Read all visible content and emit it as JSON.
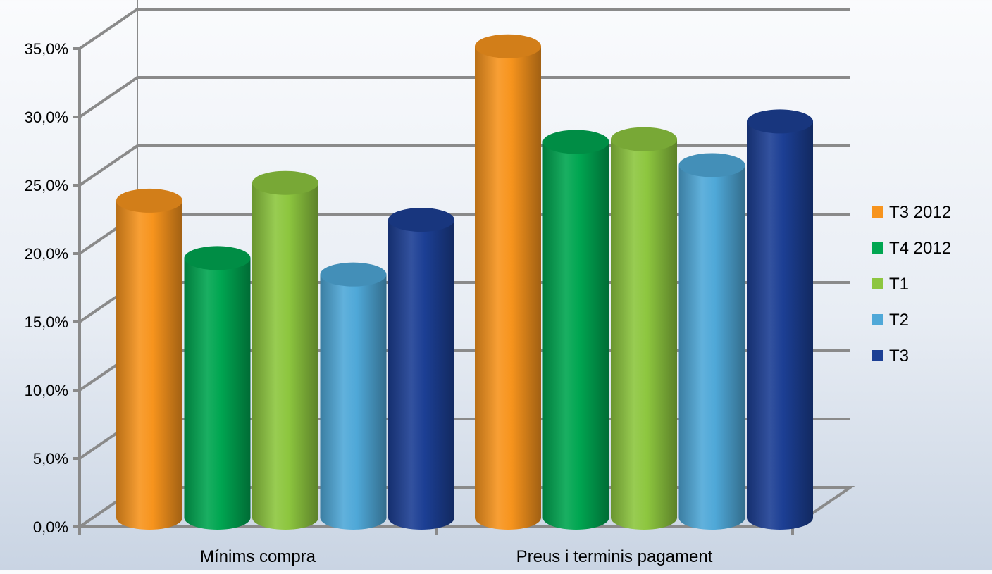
{
  "chart_data": {
    "type": "bar",
    "title": "",
    "xlabel": "",
    "ylabel": "",
    "categories": [
      "Mínims compra",
      "Preus i terminis pagament"
    ],
    "series": [
      {
        "name": "T3 2012",
        "color": "#f7941d",
        "values": [
          23.2,
          34.5
        ]
      },
      {
        "name": "T4 2012",
        "color": "#00a651",
        "values": [
          19.0,
          27.5
        ]
      },
      {
        "name": "T1",
        "color": "#8dc63f",
        "values": [
          24.5,
          27.7
        ]
      },
      {
        "name": "T2",
        "color": "#4fa8d8",
        "values": [
          17.8,
          25.8
        ]
      },
      {
        "name": "T3",
        "color": "#1c3f94",
        "values": [
          21.8,
          29.0
        ]
      }
    ],
    "ylim": [
      0,
      35
    ],
    "y_ticks": [
      "0,0%",
      "5,0%",
      "10,0%",
      "15,0%",
      "20,0%",
      "25,0%",
      "30,0%",
      "35,0%"
    ],
    "y_tick_values": [
      0,
      5,
      10,
      15,
      20,
      25,
      30,
      35
    ],
    "grid": true,
    "legend": "right",
    "style": "3d-cylinder"
  }
}
